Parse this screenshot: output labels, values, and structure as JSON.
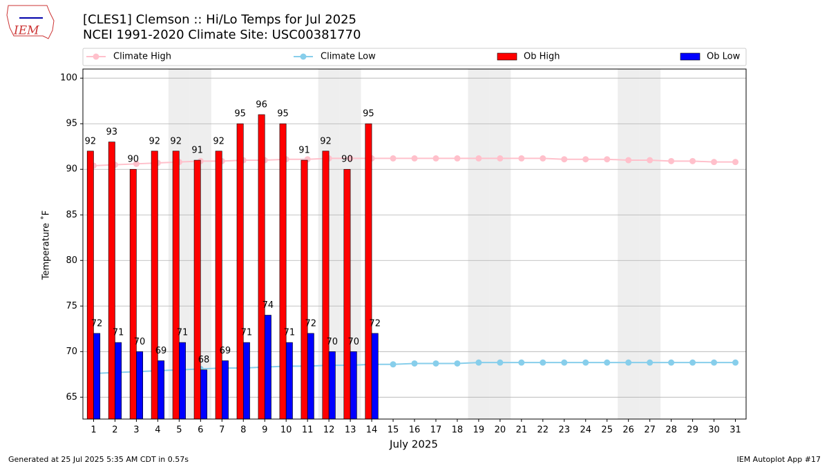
{
  "chart_data": {
    "type": "bar",
    "title": "[CLES1] Clemson :: Hi/Lo Temps for Jul 2025",
    "subtitle": "NCEI 1991-2020 Climate Site: USC00381770",
    "ylabel": "Temperature ˚F",
    "xlabel": "July 2025",
    "footer_left": "Generated at 25 Jul 2025 5:35 AM CDT in 0.57s",
    "footer_right": "IEM Autoplot App #17",
    "logo": "IEM",
    "x": [
      1,
      2,
      3,
      4,
      5,
      6,
      7,
      8,
      9,
      10,
      11,
      12,
      13,
      14,
      15,
      16,
      17,
      18,
      19,
      20,
      21,
      22,
      23,
      24,
      25,
      26,
      27,
      28,
      29,
      30,
      31
    ],
    "xlim": [
      0.5,
      31.5
    ],
    "xticks": [
      1,
      2,
      3,
      4,
      5,
      6,
      7,
      8,
      9,
      10,
      11,
      12,
      13,
      14,
      15,
      16,
      17,
      18,
      19,
      20,
      21,
      22,
      23,
      24,
      25,
      26,
      27,
      28,
      29,
      30,
      31
    ],
    "ylim": [
      62.6,
      101
    ],
    "yticks": [
      65,
      70,
      75,
      80,
      85,
      90,
      95,
      100
    ],
    "grid": true,
    "highlight_days": [
      5,
      6,
      12,
      13,
      19,
      20,
      26,
      27
    ],
    "highlight_color": "#eeeeee",
    "series": [
      {
        "name": "Climate High",
        "kind": "line",
        "color": "#ffc0cb",
        "values": [
          90.4,
          90.5,
          90.6,
          90.7,
          90.8,
          90.9,
          90.9,
          91.0,
          91.0,
          91.1,
          91.1,
          91.2,
          91.2,
          91.2,
          91.2,
          91.2,
          91.2,
          91.2,
          91.2,
          91.2,
          91.2,
          91.2,
          91.1,
          91.1,
          91.1,
          91.0,
          91.0,
          90.9,
          90.9,
          90.8,
          90.8
        ]
      },
      {
        "name": "Climate Low",
        "kind": "line",
        "color": "#87ceeb",
        "values": [
          67.6,
          67.7,
          67.8,
          67.9,
          68.0,
          68.1,
          68.2,
          68.2,
          68.3,
          68.4,
          68.4,
          68.5,
          68.5,
          68.6,
          68.6,
          68.7,
          68.7,
          68.7,
          68.8,
          68.8,
          68.8,
          68.8,
          68.8,
          68.8,
          68.8,
          68.8,
          68.8,
          68.8,
          68.8,
          68.8,
          68.8
        ]
      },
      {
        "name": "Ob High",
        "kind": "bar",
        "color": "#ff0000",
        "values": [
          92,
          93,
          90,
          92,
          92,
          91,
          92,
          95,
          96,
          95,
          91,
          92,
          90,
          95,
          null,
          null,
          null,
          null,
          null,
          null,
          null,
          null,
          null,
          null,
          null,
          null,
          null,
          null,
          null,
          null,
          null
        ]
      },
      {
        "name": "Ob Low",
        "kind": "bar",
        "color": "#0000ff",
        "values": [
          72,
          71,
          70,
          69,
          71,
          68,
          69,
          71,
          74,
          71,
          72,
          70,
          70,
          72,
          null,
          null,
          null,
          null,
          null,
          null,
          null,
          null,
          null,
          null,
          null,
          null,
          null,
          null,
          null,
          null,
          null
        ]
      }
    ]
  }
}
